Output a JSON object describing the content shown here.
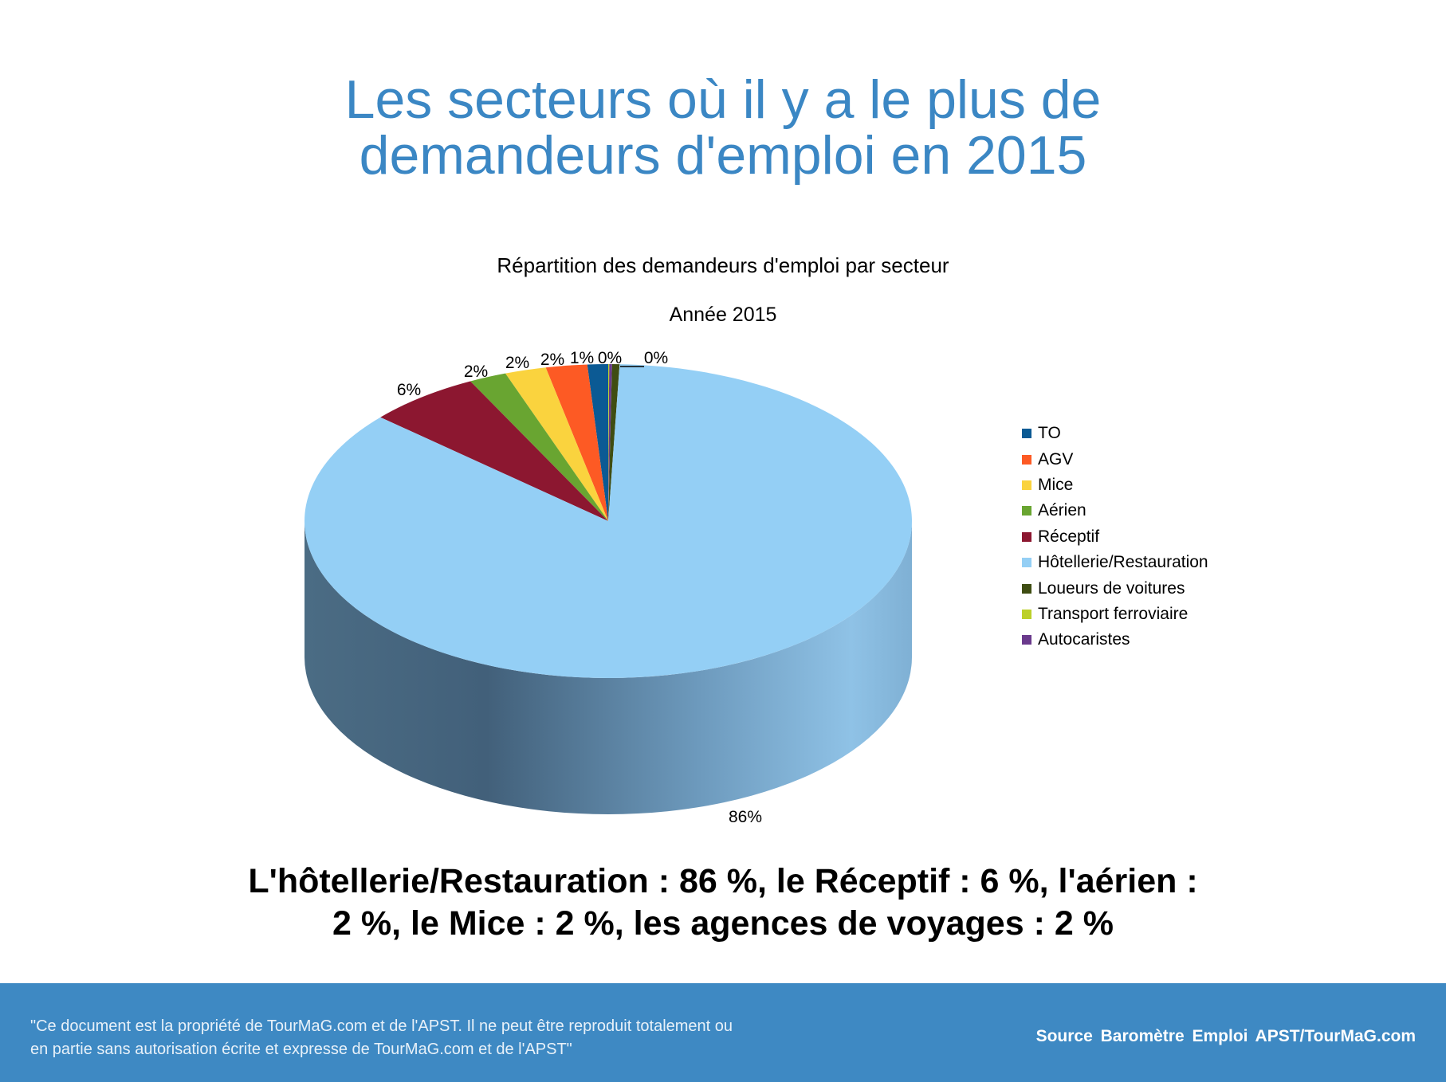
{
  "title_line1": "Les secteurs où il y a le plus de",
  "title_line2": "demandeurs d'emploi en 2015",
  "chart_data": {
    "type": "pie",
    "title": "Répartition des demandeurs d'emploi par secteur",
    "subtitle": "Année 2015",
    "legend_position": "right",
    "slices": [
      {
        "name": "Loueurs de voitures",
        "value": 0.4,
        "label": "0%",
        "color": "#3f4d12"
      },
      {
        "name": "Autocaristes",
        "value": 0.15,
        "label": "0%",
        "color": "#6a3a8c"
      },
      {
        "name": "Transport ferroviaire",
        "value": 0.05,
        "label": "",
        "color": "#bcd02a"
      },
      {
        "name": "TO",
        "value": 1.1,
        "label": "1%",
        "color": "#0b5a94"
      },
      {
        "name": "AGV",
        "value": 2.2,
        "label": "2%",
        "color": "#fd5a24"
      },
      {
        "name": "Mice",
        "value": 2.2,
        "label": "2%",
        "color": "#fad33e"
      },
      {
        "name": "Aérien",
        "value": 2.0,
        "label": "2%",
        "color": "#69a531"
      },
      {
        "name": "Réceptif",
        "value": 6.0,
        "label": "6%",
        "color": "#8c1730"
      },
      {
        "name": "Hôtellerie/Restauration",
        "value": 85.9,
        "label": "86%",
        "color": "#94cff5"
      }
    ],
    "legend_order": [
      "TO",
      "AGV",
      "Mice",
      "Aérien",
      "Réceptif",
      "Hôtellerie/Restauration",
      "Loueurs de voitures",
      "Transport ferroviaire",
      "Autocaristes"
    ]
  },
  "summary_line1": "L'hôtellerie/Restauration : 86 %, le Réceptif : 6 %, l'aérien :",
  "summary_line2": "2 %, le Mice : 2 %, les agences de voyages : 2 %",
  "footer": {
    "disclaimer_line1": "\"Ce document est la propriété de TourMaG.com et de l'APST. Il ne peut être reproduit totalement ou",
    "disclaimer_line2": "en partie sans autorisation écrite et expresse de TourMaG.com et de l'APST\"",
    "source": "Source Baromètre Emploi APST/TourMaG.com"
  }
}
